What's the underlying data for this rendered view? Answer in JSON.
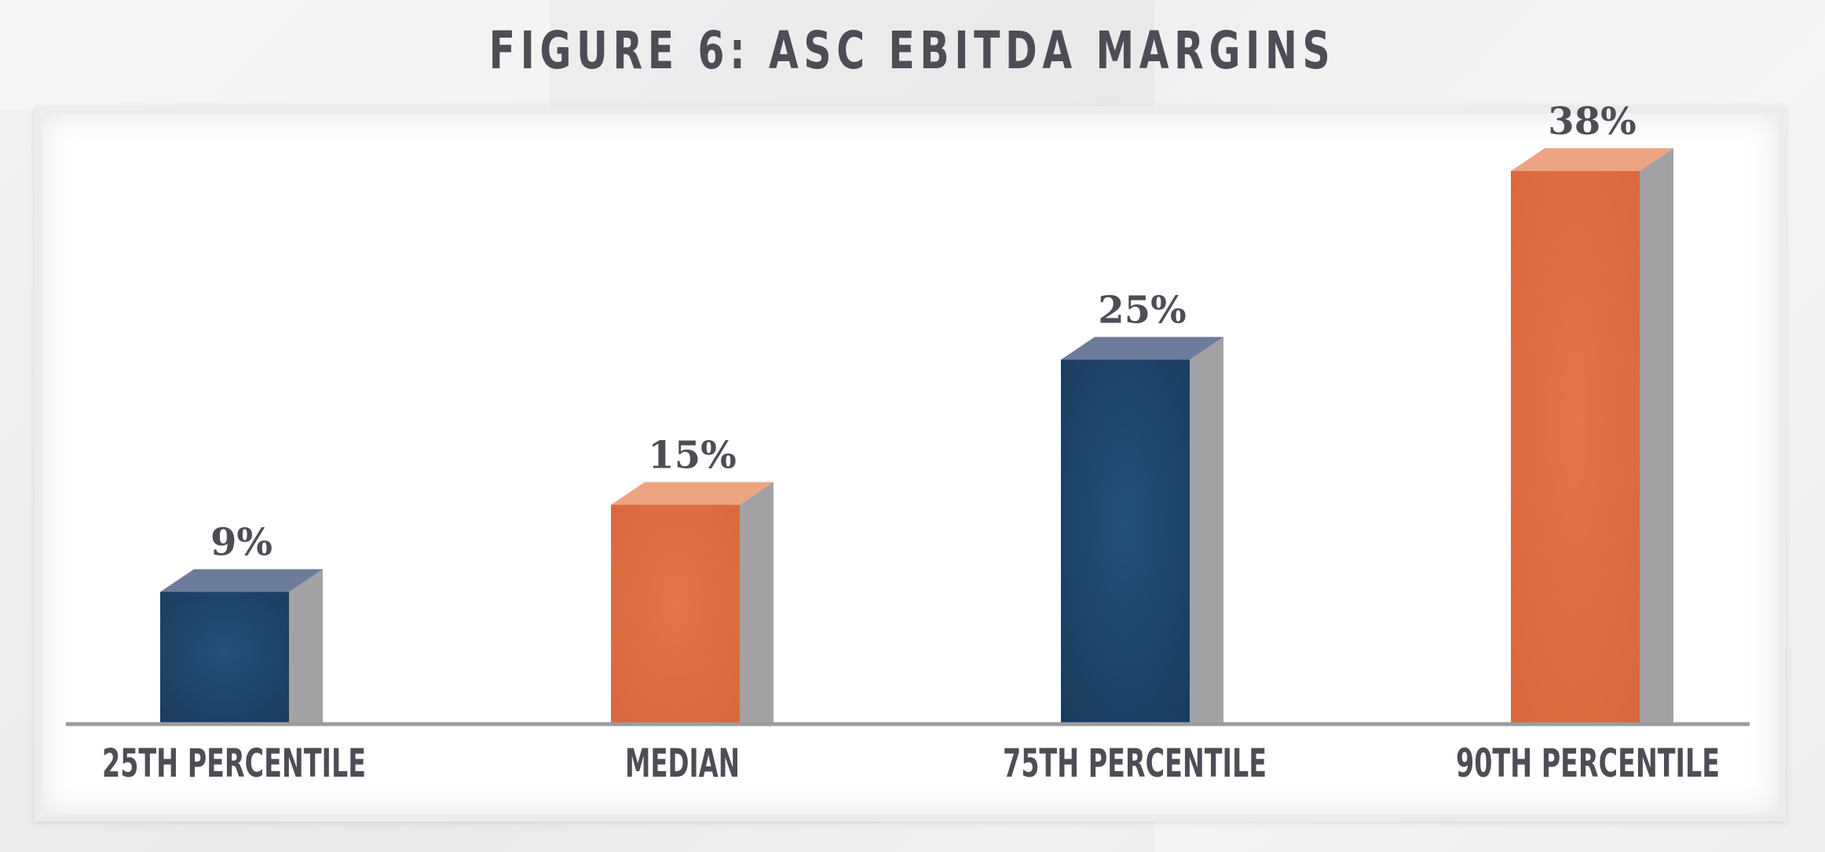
{
  "chart_data": {
    "type": "bar",
    "title": "FIGURE 6: ASC EBITDA MARGINS",
    "categories": [
      "25TH PERCENTILE",
      "MEDIAN",
      "75TH PERCENTILE",
      "90TH PERCENTILE"
    ],
    "values": [
      9,
      15,
      25,
      38
    ],
    "value_labels": [
      "9%",
      "15%",
      "25%",
      "38%"
    ],
    "xlabel": "",
    "ylabel": "",
    "ylim": [
      0,
      40
    ],
    "grid": false,
    "legend": "none",
    "colors": {
      "navy_front": "#1d4268",
      "navy_top": "#6e7c9c",
      "orange_front": "#e07043",
      "orange_top": "#eda483",
      "side": "#a2a1a4",
      "axis": "#9b9ba0",
      "text": "#4d4e55"
    },
    "bar_color_keys": [
      "navy",
      "orange",
      "navy",
      "orange"
    ]
  }
}
